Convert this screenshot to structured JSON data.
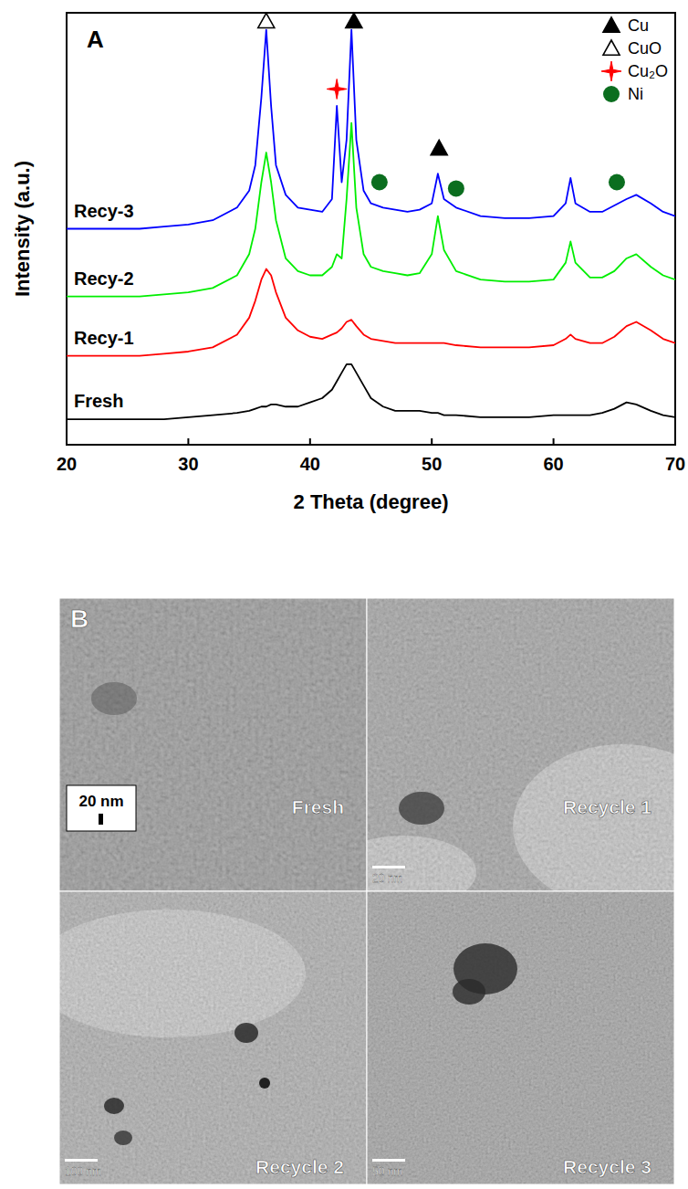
{
  "chart_data": {
    "type": "line",
    "panel_label": "A",
    "x_label": "2 Theta (degree)",
    "y_label": "Intensity (a.u.)",
    "xlim": [
      20,
      70
    ],
    "xticks": [
      20,
      30,
      40,
      50,
      60,
      70
    ],
    "ylim": [
      0,
      102
    ],
    "yticks": [],
    "tick_labels": "x",
    "grid": false,
    "legend": "top-right",
    "x": [
      20,
      22,
      24,
      26,
      28,
      30,
      32,
      34,
      35,
      35.5,
      36,
      36.4,
      36.8,
      37.2,
      38,
      39,
      40,
      41,
      41.8,
      42.2,
      42.6,
      43,
      43.4,
      43.8,
      44.4,
      45,
      46,
      47,
      48,
      49,
      50,
      50.5,
      51,
      52,
      54,
      56,
      58,
      60,
      61,
      61.4,
      61.8,
      63,
      64,
      65,
      66,
      66.8,
      68,
      69,
      70
    ],
    "series": [
      {
        "name": "Fresh",
        "type": "line",
        "color": "#000000",
        "values": [
          6,
          6,
          6,
          6,
          6,
          6.5,
          7,
          7.5,
          8,
          8.5,
          9,
          9,
          9.5,
          9.5,
          9,
          9,
          10,
          11,
          13,
          15,
          17,
          19,
          19,
          17,
          14,
          11,
          9,
          8,
          8,
          8,
          7.5,
          7.5,
          7,
          7,
          6.5,
          6.5,
          6.5,
          7,
          7,
          7,
          7,
          7,
          7.5,
          8.5,
          10,
          9.5,
          8,
          7,
          6.5
        ]
      },
      {
        "name": "Recy-1",
        "type": "line",
        "color": "#ff0000",
        "values": [
          21,
          21,
          21,
          21,
          21.5,
          22,
          23,
          26,
          30,
          34,
          39,
          41.5,
          40,
          36,
          30,
          27,
          25.5,
          25,
          26,
          26.5,
          27.5,
          29,
          29.5,
          28,
          26,
          25,
          24.5,
          24,
          24,
          24,
          24,
          24,
          24,
          23.5,
          23,
          23,
          23,
          23.5,
          25,
          26,
          25,
          24,
          24,
          25.5,
          28,
          29,
          27,
          25,
          24
        ]
      },
      {
        "name": "Recy-2",
        "type": "line",
        "color": "#00ee00",
        "values": [
          35,
          35,
          35,
          35,
          35.5,
          36,
          37,
          40,
          45,
          51,
          62,
          69,
          62,
          53,
          44,
          41,
          40,
          40,
          42,
          45,
          44,
          58,
          76,
          56,
          45,
          42,
          41,
          40.5,
          40,
          40.5,
          45,
          54,
          46,
          41,
          39,
          38.5,
          38.5,
          39,
          43,
          48,
          43,
          39.5,
          39.5,
          41,
          44,
          45,
          42,
          40,
          39
        ]
      },
      {
        "name": "Recy-3",
        "type": "line",
        "color": "#0000ff",
        "values": [
          51,
          51,
          51,
          51,
          51.5,
          52,
          53,
          56,
          60,
          66,
          82,
          98,
          80,
          66,
          59,
          56,
          55.5,
          55,
          58,
          80,
          62,
          72,
          98,
          72,
          60,
          57,
          56,
          55.5,
          55,
          55.5,
          57,
          64,
          58,
          56,
          54,
          53.5,
          53.5,
          54,
          57,
          63,
          57,
          55,
          55,
          56.5,
          58,
          59,
          57,
          55,
          54
        ]
      },
      {
        "name": "Cu",
        "type": "scatter",
        "marker": "filled-triangle",
        "color": "#000000",
        "x": [
          43.6,
          50.6
        ],
        "values": [
          100,
          70
        ]
      },
      {
        "name": "CuO",
        "type": "scatter",
        "marker": "open-triangle",
        "color": "#000000",
        "x": [
          36.4
        ],
        "values": [
          100
        ]
      },
      {
        "name": "Cu₂O",
        "type": "scatter",
        "marker": "star",
        "color": "#ff0000",
        "x": [
          42.2
        ],
        "values": [
          84
        ]
      },
      {
        "name": "Ni",
        "type": "scatter",
        "marker": "circle",
        "color": "#0b6e1f",
        "x": [
          45.7,
          52.0,
          65.2
        ],
        "values": [
          62,
          60.5,
          62
        ]
      }
    ]
  },
  "tem_panel": {
    "label": "B",
    "images": [
      {
        "caption": "Fresh",
        "scale_bar": "20 nm"
      },
      {
        "caption": "Recycle 1",
        "scale_bar": "20 nm"
      },
      {
        "caption": "Recycle 2",
        "scale_bar": "100 nm"
      },
      {
        "caption": "Recycle 3",
        "scale_bar": "50 nm"
      }
    ]
  }
}
